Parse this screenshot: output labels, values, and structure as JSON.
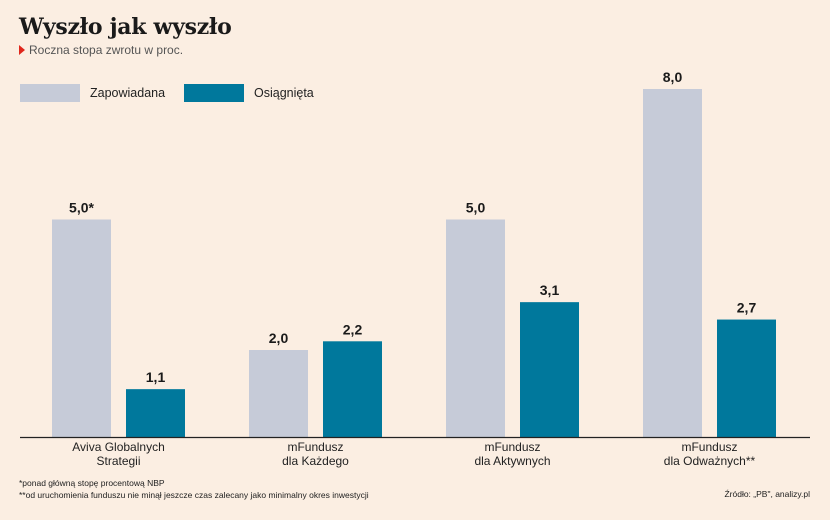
{
  "header": {
    "title": "Wyszło jak wyszło",
    "subtitle": "Roczna stopa zwrotu w proc."
  },
  "footnotes": [
    "*ponad główną stopę procentową NBP",
    "**od uruchomienia funduszu nie minął jeszcze czas zalecany jako minimalny okres inwestycji"
  ],
  "source": "Źródło: „PB\", analizy.pl",
  "colors": {
    "promised": "#c6cbd8",
    "achieved": "#00789c",
    "background": "#fbeee2"
  },
  "chart_data": {
    "type": "bar",
    "title": "Wyszło jak wyszło",
    "subtitle": "Roczna stopa zwrotu w proc.",
    "categories": [
      [
        "Aviva Globalnych",
        "Strategii"
      ],
      [
        "mFundusz",
        "dla Każdego"
      ],
      [
        "mFundusz",
        "dla Aktywnych"
      ],
      [
        "mFundusz",
        "dla Odważnych**"
      ]
    ],
    "series": [
      {
        "name": "Zapowiadana",
        "values": [
          5.0,
          2.0,
          5.0,
          8.0
        ],
        "labels": [
          "5,0*",
          "2,0",
          "5,0",
          "8,0"
        ]
      },
      {
        "name": "Osiągnięta",
        "values": [
          1.1,
          2.2,
          3.1,
          2.7
        ],
        "labels": [
          "1,1",
          "2,2",
          "3,1",
          "2,7"
        ]
      }
    ],
    "ylim": [
      0,
      8.0
    ],
    "grid": false,
    "legend": "top-left",
    "xlabel": "",
    "ylabel": ""
  }
}
